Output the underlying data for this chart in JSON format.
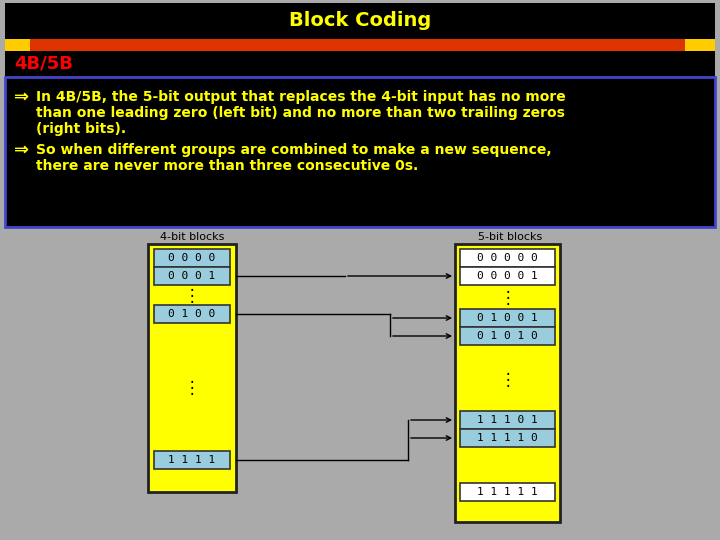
{
  "title": "Block Coding",
  "title_color": "#ffff00",
  "title_bg": "#000000",
  "subtitle": "4B/5B",
  "subtitle_color": "#ff0000",
  "subtitle_bg": "#000000",
  "stripe_left_color": "#ffcc00",
  "stripe_mid_color": "#dd3300",
  "stripe_right_color": "#ffcc00",
  "text_bg": "#000000",
  "text_border": "#4444cc",
  "bullet_color": "#ffff00",
  "bullet1_line1": "In 4B/5B, the 5-bit output that replaces the 4-bit input has no more",
  "bullet1_line2": "than one leading zero (left bit) and no more than two trailing zeros",
  "bullet1_line3": "(right bits).",
  "bullet2_line1": "So when different groups are combined to make a new sequence,",
  "bullet2_line2": "there are never more than three consecutive 0s.",
  "left_label": "4-bit blocks",
  "right_label": "5-bit blocks",
  "left_box_color": "#ffff00",
  "right_box_color": "#ffff00",
  "cyan_box_color": "#99ccdd",
  "white_box_color": "#ffffff",
  "left_items": [
    "0 0 0 0",
    "0 0 0 1",
    "0 1 0 0",
    "1 1 1 1"
  ],
  "left_cyan": [
    true,
    true,
    true,
    true
  ],
  "right_items": [
    "0 0 0 0 0",
    "0 0 0 0 1",
    "0 1 0 0 1",
    "0 1 0 1 0",
    "1 1 1 0 1",
    "1 1 1 1 0",
    "1 1 1 1 1"
  ],
  "right_cyan": [
    false,
    false,
    true,
    true,
    true,
    true,
    false
  ],
  "bg_color": "#aaaaaa"
}
